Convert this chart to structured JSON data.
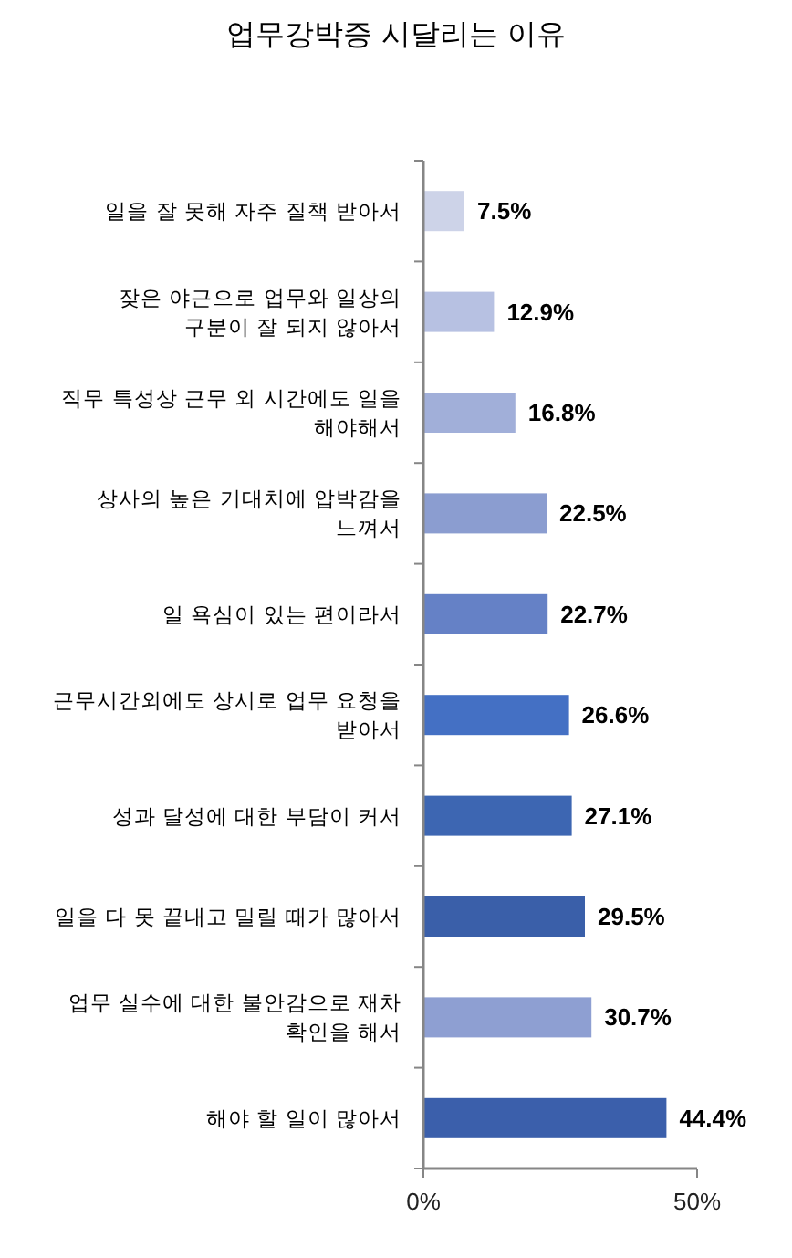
{
  "chart_data": {
    "type": "bar",
    "orientation": "horizontal",
    "title": "업무강박증 시달리는 이유",
    "categories": [
      "일을 잘 못해 자주 질책 받아서",
      "잦은 야근으로 업무와 일상의\n구분이 잘 되지 않아서",
      "직무 특성상 근무 외 시간에도 일을\n해야해서",
      "상사의 높은 기대치에 압박감을\n느껴서",
      "일 욕심이 있는 편이라서",
      "근무시간외에도 상시로 업무 요청을\n받아서",
      "성과 달성에 대한 부담이 커서",
      "일을 다 못 끝내고 밀릴 때가 많아서",
      "업무 실수에 대한 불안감으로 재차\n확인을 해서",
      "해야 할 일이 많아서"
    ],
    "values": [
      7.5,
      12.9,
      16.8,
      22.5,
      22.7,
      26.6,
      27.1,
      29.5,
      30.7,
      44.4
    ],
    "colors": [
      "#cdd3e8",
      "#b7c1e2",
      "#a1afd9",
      "#8b9dd0",
      "#6581c6",
      "#4470c4",
      "#3d66b2",
      "#3a5fa9",
      "#8e9fd2",
      "#3b5fab"
    ],
    "value_labels": [
      "7.5%",
      "12.9%",
      "16.8%",
      "22.5%",
      "22.7%",
      "26.6%",
      "27.1%",
      "29.5%",
      "30.7%",
      "44.4%"
    ],
    "xlim": [
      0,
      50
    ],
    "xticks": [
      {
        "value": 0,
        "label": "0%"
      },
      {
        "value": 50,
        "label": "50%"
      }
    ]
  }
}
